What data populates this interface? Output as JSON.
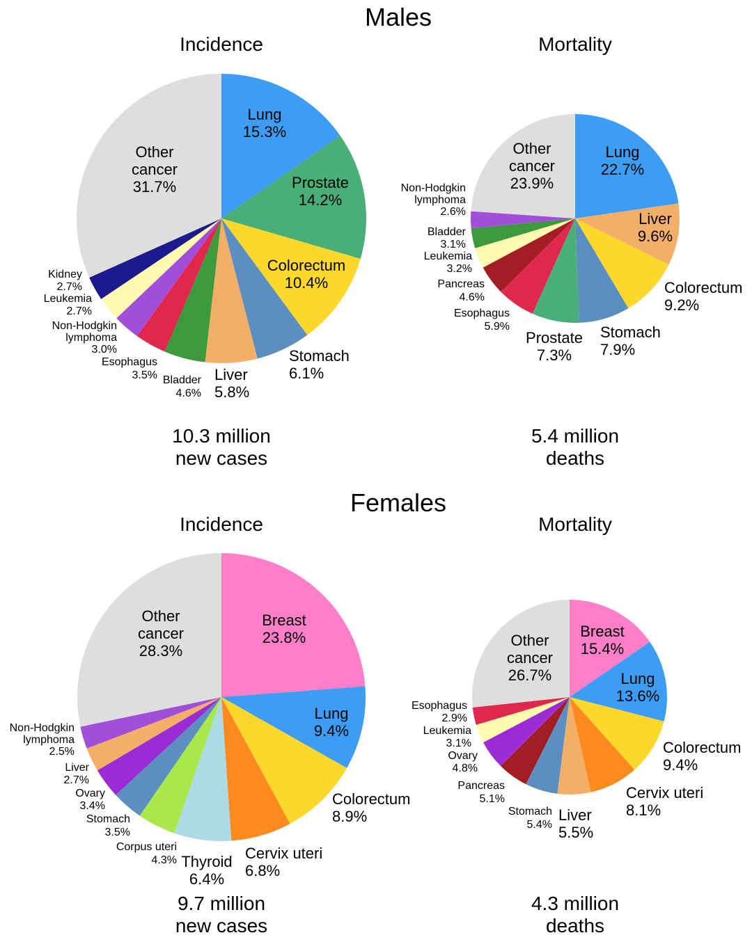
{
  "sections": {
    "males": "Males",
    "females": "Females",
    "incidence": "Incidence",
    "mortality": "Mortality"
  },
  "totals": {
    "males_incidence": [
      "10.3 million",
      "new cases"
    ],
    "males_mortality": [
      "5.4 million",
      "deaths"
    ],
    "females_incidence": [
      "9.7 million",
      "new cases"
    ],
    "females_mortality": [
      "4.3 million",
      "deaths"
    ]
  },
  "chart_data": [
    {
      "type": "pie",
      "id": "males-incidence",
      "title": "Incidence",
      "group": "Males",
      "slices": [
        {
          "label": "Lung",
          "value": 15.3,
          "color": "#3d9df5"
        },
        {
          "label": "Prostate",
          "value": 14.2,
          "color": "#4aae78"
        },
        {
          "label": "Colorectum",
          "value": 10.4,
          "color": "#fcd82a"
        },
        {
          "label": "Stomach",
          "value": 6.1,
          "color": "#5b8fbf"
        },
        {
          "label": "Liver",
          "value": 5.8,
          "color": "#f3af67"
        },
        {
          "label": "Bladder",
          "value": 4.6,
          "color": "#3c9a3c"
        },
        {
          "label": "Esophagus",
          "value": 3.5,
          "color": "#e0284f"
        },
        {
          "label": "Non-Hodgkin lymphoma",
          "value": 3.0,
          "color": "#a14ed8"
        },
        {
          "label": "Leukemia",
          "value": 2.7,
          "color": "#fffab0"
        },
        {
          "label": "Kidney",
          "value": 2.7,
          "color": "#1c1a8d"
        },
        {
          "label": "Other cancer",
          "value": 31.7,
          "color": "#dedede"
        }
      ]
    },
    {
      "type": "pie",
      "id": "males-mortality",
      "title": "Mortality",
      "group": "Males",
      "slices": [
        {
          "label": "Lung",
          "value": 22.7,
          "color": "#3d9df5"
        },
        {
          "label": "Liver",
          "value": 9.6,
          "color": "#f3af67"
        },
        {
          "label": "Colorectum",
          "value": 9.2,
          "color": "#fcd82a"
        },
        {
          "label": "Stomach",
          "value": 7.9,
          "color": "#5b8fbf"
        },
        {
          "label": "Prostate",
          "value": 7.3,
          "color": "#4aae78"
        },
        {
          "label": "Esophagus",
          "value": 5.9,
          "color": "#e0284f"
        },
        {
          "label": "Pancreas",
          "value": 4.6,
          "color": "#a31d25"
        },
        {
          "label": "Leukemia",
          "value": 3.2,
          "color": "#fffab0"
        },
        {
          "label": "Bladder",
          "value": 3.1,
          "color": "#3c9a3c"
        },
        {
          "label": "Non-Hodgkin lymphoma",
          "value": 2.6,
          "color": "#a14ed8"
        },
        {
          "label": "Other cancer",
          "value": 23.9,
          "color": "#dedede"
        }
      ]
    },
    {
      "type": "pie",
      "id": "females-incidence",
      "title": "Incidence",
      "group": "Females",
      "slices": [
        {
          "label": "Breast",
          "value": 23.8,
          "color": "#fc7fc7"
        },
        {
          "label": "Lung",
          "value": 9.4,
          "color": "#3d9df5"
        },
        {
          "label": "Colorectum",
          "value": 8.9,
          "color": "#fcd82a"
        },
        {
          "label": "Cervix uteri",
          "value": 6.8,
          "color": "#fd8a1f"
        },
        {
          "label": "Thyroid",
          "value": 6.4,
          "color": "#addbe5"
        },
        {
          "label": "Corpus uteri",
          "value": 4.3,
          "color": "#a8e84c"
        },
        {
          "label": "Stomach",
          "value": 3.5,
          "color": "#5b8fbf"
        },
        {
          "label": "Ovary",
          "value": 3.4,
          "color": "#9b2bd4"
        },
        {
          "label": "Liver",
          "value": 2.7,
          "color": "#f3af67"
        },
        {
          "label": "Non-Hodgkin lymphoma",
          "value": 2.5,
          "color": "#a14ed8"
        },
        {
          "label": "Other cancer",
          "value": 28.3,
          "color": "#dedede"
        }
      ]
    },
    {
      "type": "pie",
      "id": "females-mortality",
      "title": "Mortality",
      "group": "Females",
      "slices": [
        {
          "label": "Breast",
          "value": 15.4,
          "color": "#fc7fc7"
        },
        {
          "label": "Lung",
          "value": 13.6,
          "color": "#3d9df5"
        },
        {
          "label": "Colorectum",
          "value": 9.4,
          "color": "#fcd82a"
        },
        {
          "label": "Cervix uteri",
          "value": 8.1,
          "color": "#fd8a1f"
        },
        {
          "label": "Liver",
          "value": 5.5,
          "color": "#f3af67"
        },
        {
          "label": "Stomach",
          "value": 5.4,
          "color": "#5b8fbf"
        },
        {
          "label": "Pancreas",
          "value": 5.1,
          "color": "#a31d25"
        },
        {
          "label": "Ovary",
          "value": 4.8,
          "color": "#9b2bd4"
        },
        {
          "label": "Leukemia",
          "value": 3.1,
          "color": "#fffab0"
        },
        {
          "label": "Esophagus",
          "value": 2.9,
          "color": "#e0284f"
        },
        {
          "label": "Other cancer",
          "value": 26.7,
          "color": "#dedede"
        }
      ]
    }
  ]
}
